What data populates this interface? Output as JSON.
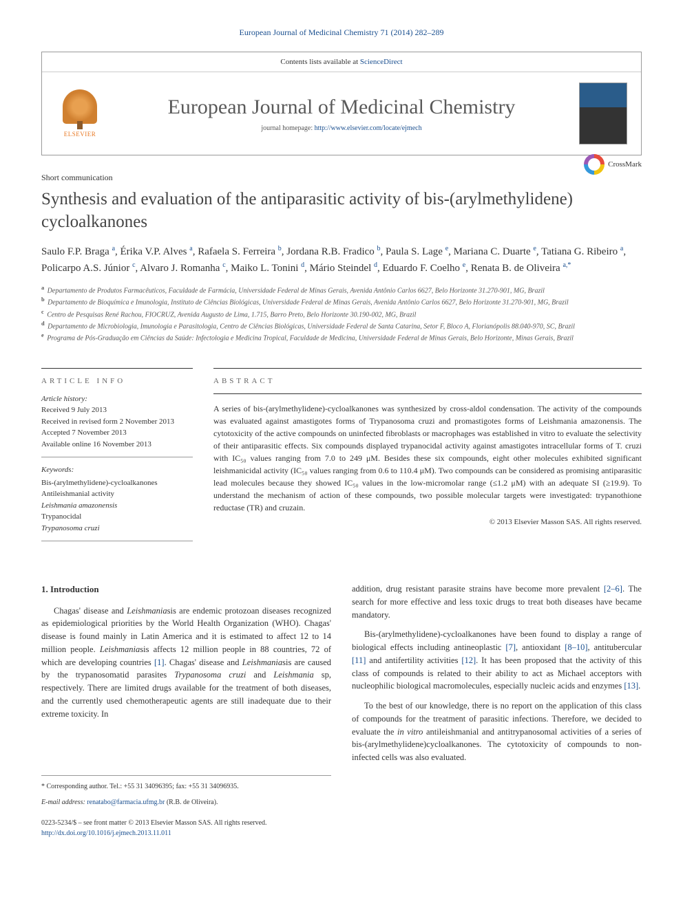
{
  "citation": "European Journal of Medicinal Chemistry 71 (2014) 282–289",
  "header": {
    "contents_text": "Contents lists available at ",
    "contents_link": "ScienceDirect",
    "journal_title": "European Journal of Medicinal Chemistry",
    "homepage_label": "journal homepage: ",
    "homepage_url": "http://www.elsevier.com/locate/ejmech",
    "publisher": "ELSEVIER"
  },
  "article_type": "Short communication",
  "title": "Synthesis and evaluation of the antiparasitic activity of bis-(arylmethylidene) cycloalkanones",
  "crossmark_label": "CrossMark",
  "authors_html": "Saulo F.P. Braga <sup>a</sup>, Érika V.P. Alves <sup>a</sup>, Rafaela S. Ferreira <sup>b</sup>, Jordana R.B. Fradico <sup>b</sup>, Paula S. Lage <sup>e</sup>, Mariana C. Duarte <sup>e</sup>, Tatiana G. Ribeiro <sup>a</sup>, Policarpo A.S. Júnior <sup>c</sup>, Alvaro J. Romanha <sup>c</sup>, Maiko L. Tonini <sup>d</sup>, Mário Steindel <sup>d</sup>, Eduardo F. Coelho <sup>e</sup>, Renata B. de Oliveira <sup>a,*</sup>",
  "affiliations": [
    {
      "key": "a",
      "text": "Departamento de Produtos Farmacêuticos, Faculdade de Farmácia, Universidade Federal de Minas Gerais, Avenida Antônio Carlos 6627, Belo Horizonte 31.270-901, MG, Brazil"
    },
    {
      "key": "b",
      "text": "Departamento de Bioquímica e Imunologia, Instituto de Ciências Biológicas, Universidade Federal de Minas Gerais, Avenida Antônio Carlos 6627, Belo Horizonte 31.270-901, MG, Brazil"
    },
    {
      "key": "c",
      "text": "Centro de Pesquisas René Rachou, FIOCRUZ, Avenida Augusto de Lima, 1.715, Barro Preto, Belo Horizonte 30.190-002, MG, Brazil"
    },
    {
      "key": "d",
      "text": "Departamento de Microbiologia, Imunologia e Parasitologia, Centro de Ciências Biológicas, Universidade Federal de Santa Catarina, Setor F, Bloco A, Florianópolis 88.040-970, SC, Brazil"
    },
    {
      "key": "e",
      "text": "Programa de Pós-Graduação em Ciências da Saúde: Infectologia e Medicina Tropical, Faculdade de Medicina, Universidade Federal de Minas Gerais, Belo Horizonte, Minas Gerais, Brazil"
    }
  ],
  "article_info": {
    "heading": "ARTICLE INFO",
    "history_label": "Article history:",
    "received": "Received 9 July 2013",
    "revised": "Received in revised form 2 November 2013",
    "accepted": "Accepted 7 November 2013",
    "online": "Available online 16 November 2013",
    "keywords_label": "Keywords:",
    "keywords": [
      "Bis-(arylmethylidene)-cycloalkanones",
      "Antileishmanial activity",
      "Leishmania amazonensis",
      "Trypanocidal",
      "Trypanosoma cruzi"
    ]
  },
  "abstract": {
    "heading": "ABSTRACT",
    "text": "A series of bis-(arylmethylidene)-cycloalkanones was synthesized by cross-aldol condensation. The activity of the compounds was evaluated against amastigotes forms of Trypanosoma cruzi and promastigotes forms of Leishmania amazonensis. The cytotoxicity of the active compounds on uninfected fibroblasts or macrophages was established in vitro to evaluate the selectivity of their antiparasitic effects. Six compounds displayed trypanocidal activity against amastigotes intracellular forms of T. cruzi with IC₅₀ values ranging from 7.0 to 249 μM. Besides these six compounds, eight other molecules exhibited significant leishmanicidal activity (IC₅₀ values ranging from 0.6 to 110.4 μM). Two compounds can be considered as promising antiparasitic lead molecules because they showed IC₅₀ values in the low-micromolar range (≤1.2 μM) with an adequate SI (≥19.9). To understand the mechanism of action of these compounds, two possible molecular targets were investigated: trypanothione reductase (TR) and cruzain.",
    "copyright": "© 2013 Elsevier Masson SAS. All rights reserved."
  },
  "body": {
    "heading": "1. Introduction",
    "col1_p1": "Chagas' disease and Leishmaniasis are endemic protozoan diseases recognized as epidemiological priorities by the World Health Organization (WHO). Chagas' disease is found mainly in Latin America and it is estimated to affect 12 to 14 million people. Leishmaniasis affects 12 million people in 88 countries, 72 of which are developing countries [1]. Chagas' disease and Leishmaniasis are caused by the trypanosomatid parasites Trypanosoma cruzi and Leishmania sp, respectively. There are limited drugs available for the treatment of both diseases, and the currently used chemotherapeutic agents are still inadequate due to their extreme toxicity. In",
    "col2_p1": "addition, drug resistant parasite strains have become more prevalent [2–6]. The search for more effective and less toxic drugs to treat both diseases have became mandatory.",
    "col2_p2": "Bis-(arylmethylidene)-cycloalkanones have been found to display a range of biological effects including antineoplastic [7], antioxidant [8–10], antitubercular [11] and antifertility activities [12]. It has been proposed that the activity of this class of compounds is related to their ability to act as Michael acceptors with nucleophilic biological macromolecules, especially nucleic acids and enzymes [13].",
    "col2_p3": "To the best of our knowledge, there is no report on the application of this class of compounds for the treatment of parasitic infections. Therefore, we decided to evaluate the in vitro antileishmanial and antitrypanosomal activities of a series of bis-(arylmethylidene)cycloalkanones. The cytotoxicity of compounds to non-infected cells was also evaluated."
  },
  "footer": {
    "corresponding": "* Corresponding author. Tel.: +55 31 34096395; fax: +55 31 34096935.",
    "email_label": "E-mail address: ",
    "email": "renatabo@farmacia.ufmg.br",
    "email_name": " (R.B. de Oliveira).",
    "issn": "0223-5234/$ – see front matter © 2013 Elsevier Masson SAS. All rights reserved.",
    "doi": "http://dx.doi.org/10.1016/j.ejmech.2013.11.011"
  },
  "colors": {
    "link": "#1a4f8f",
    "text": "#333333",
    "heading": "#5a5a5a"
  }
}
